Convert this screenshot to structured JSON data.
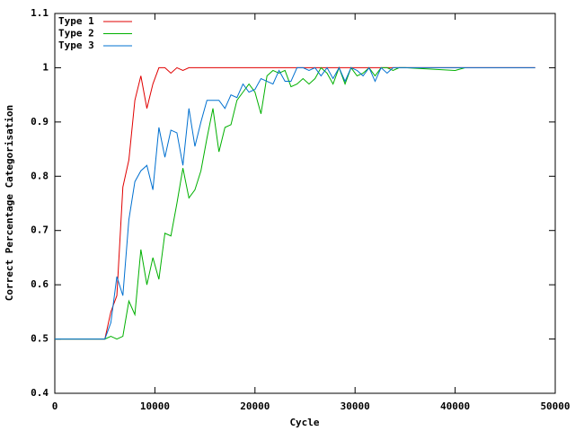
{
  "chart_data": {
    "type": "line",
    "x_label": "Cycle",
    "y_label": "Correct Percentage Categorisation",
    "x": [
      0,
      5000,
      5600,
      6200,
      6800,
      7400,
      8000,
      8600,
      9200,
      9800,
      10400,
      11000,
      11600,
      12200,
      12800,
      13400,
      14000,
      14600,
      15200,
      15800,
      16400,
      17000,
      17600,
      18200,
      18800,
      19400,
      20000,
      20600,
      21200,
      21800,
      22400,
      23000,
      23600,
      24200,
      24800,
      25400,
      26000,
      26600,
      27200,
      27800,
      28400,
      29000,
      29600,
      30200,
      30800,
      31400,
      32000,
      32600,
      33200,
      33800,
      34400,
      35000,
      40000,
      41000,
      48000
    ],
    "series": [
      {
        "name": "Type 1",
        "color": "#e00000",
        "values": [
          0.5,
          0.5,
          0.55,
          0.58,
          0.78,
          0.83,
          0.94,
          0.985,
          0.925,
          0.97,
          1.0,
          1.0,
          0.99,
          1.0,
          0.995,
          1.0,
          1.0,
          1.0,
          1.0,
          1.0,
          1.0,
          1.0,
          1.0,
          1.0,
          1.0,
          1.0,
          1.0,
          1.0,
          1.0,
          1.0,
          1.0,
          1.0,
          1.0,
          1.0,
          1.0,
          1.0,
          1.0,
          1.0,
          1.0,
          1.0,
          1.0,
          1.0,
          1.0,
          1.0,
          1.0,
          1.0,
          1.0,
          1.0,
          1.0,
          1.0,
          1.0,
          1.0,
          1.0,
          1.0,
          1.0
        ]
      },
      {
        "name": "Type 2",
        "color": "#00b000",
        "values": [
          0.5,
          0.5,
          0.505,
          0.5,
          0.505,
          0.57,
          0.545,
          0.665,
          0.6,
          0.65,
          0.61,
          0.695,
          0.69,
          0.75,
          0.815,
          0.76,
          0.775,
          0.81,
          0.87,
          0.925,
          0.845,
          0.89,
          0.895,
          0.94,
          0.955,
          0.97,
          0.955,
          0.915,
          0.985,
          0.995,
          0.99,
          0.995,
          0.965,
          0.97,
          0.98,
          0.97,
          0.98,
          1.0,
          0.99,
          0.97,
          1.0,
          0.97,
          1.0,
          0.985,
          0.99,
          1.0,
          0.985,
          1.0,
          1.0,
          0.995,
          1.0,
          1.0,
          0.995,
          1.0,
          null
        ]
      },
      {
        "name": "Type 3",
        "color": "#0070d0",
        "values": [
          0.5,
          0.5,
          0.53,
          0.615,
          0.58,
          0.72,
          0.79,
          0.81,
          0.82,
          0.775,
          0.89,
          0.835,
          0.885,
          0.88,
          0.82,
          0.925,
          0.855,
          0.9,
          0.94,
          0.94,
          0.94,
          0.925,
          0.95,
          0.945,
          0.97,
          0.955,
          0.96,
          0.98,
          0.975,
          0.97,
          0.995,
          0.975,
          0.975,
          1.0,
          1.0,
          0.995,
          1.0,
          0.985,
          1.0,
          0.98,
          1.0,
          0.975,
          1.0,
          0.995,
          0.985,
          1.0,
          0.975,
          1.0,
          0.99,
          1.0,
          1.0,
          1.0,
          1.0,
          1.0,
          1.0
        ]
      }
    ],
    "xlim": [
      0,
      50000
    ],
    "xticks": [
      0,
      10000,
      20000,
      30000,
      40000,
      50000
    ],
    "ylim": [
      0.4,
      1.1
    ],
    "yticks": [
      0.4,
      0.5,
      0.6,
      0.7,
      0.8,
      0.9,
      1,
      1.1
    ],
    "grid": false,
    "legend": "top-left"
  }
}
